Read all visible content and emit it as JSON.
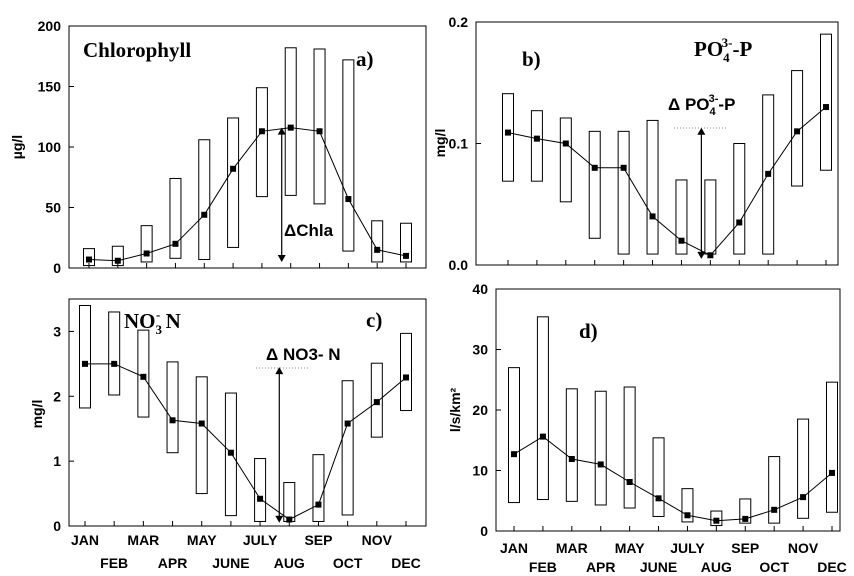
{
  "chart_data": [
    {
      "type": "line",
      "panel_label": "a)",
      "title": "Chlorophyll",
      "ylabel": "µg/l",
      "ylim": [
        0,
        200
      ],
      "yticks": [
        "0",
        "50",
        "100",
        "150",
        "200"
      ],
      "months": [
        "JAN",
        "FEB",
        "MAR",
        "APR",
        "MAY",
        "JUNE",
        "JULY",
        "AUG",
        "SEP",
        "OCT",
        "NOV",
        "DEC"
      ],
      "x_row1": [
        "JAN",
        "MAR",
        "MAY",
        "JULY",
        "SEP",
        "NOV"
      ],
      "x_row2": [
        "FEB",
        "APR",
        "JUNE",
        "AUG",
        "OCT",
        "DEC"
      ],
      "series": [
        {
          "values": [
            7,
            6,
            12,
            20,
            44,
            82,
            113,
            116,
            113,
            57,
            15,
            10
          ]
        }
      ],
      "range_bars": [
        [
          2,
          16
        ],
        [
          2,
          18
        ],
        [
          5,
          35
        ],
        [
          8,
          74
        ],
        [
          7,
          106
        ],
        [
          17,
          124
        ],
        [
          59,
          149
        ],
        [
          60,
          182
        ],
        [
          53,
          181
        ],
        [
          14,
          172
        ],
        [
          5,
          39
        ],
        [
          5,
          37
        ]
      ],
      "annotation": {
        "text": "ΔChla",
        "from": 5,
        "to": 116
      }
    },
    {
      "type": "line",
      "panel_label": "b)",
      "title_main": "PO",
      "title_sub": "4",
      "title_sup": "3-",
      "title_tail": "-P",
      "ylabel": "mg/l",
      "ylim": [
        0,
        0.2
      ],
      "yticks": [
        "0.0",
        "0.1",
        "0.2"
      ],
      "series": [
        {
          "values": [
            0.109,
            0.104,
            0.1,
            0.08,
            0.08,
            0.04,
            0.02,
            0.008,
            0.035,
            0.075,
            0.11,
            0.13
          ]
        }
      ],
      "range_bars": [
        [
          0.069,
          0.141
        ],
        [
          0.069,
          0.127
        ],
        [
          0.052,
          0.121
        ],
        [
          0.022,
          0.11
        ],
        [
          0.009,
          0.11
        ],
        [
          0.009,
          0.119
        ],
        [
          0.009,
          0.07
        ],
        [
          0.009,
          0.07
        ],
        [
          0.009,
          0.1
        ],
        [
          0.009,
          0.14
        ],
        [
          0.065,
          0.16
        ],
        [
          0.078,
          0.19
        ]
      ],
      "annotation": {
        "prefix": "Δ PO",
        "sub": "4",
        "sup": "3-",
        "tail": "-P",
        "from": 0.005,
        "to": 0.113
      }
    },
    {
      "type": "line",
      "panel_label": "c)",
      "title_main": "NO",
      "title_sub": "3",
      "title_sup": "-",
      "title_tail": " N",
      "ylabel": "mg/l",
      "ylim": [
        0,
        3.5
      ],
      "yticks": [
        "0",
        "1",
        "2",
        "3"
      ],
      "series": [
        {
          "values": [
            2.5,
            2.5,
            2.3,
            1.63,
            1.58,
            1.13,
            0.42,
            0.1,
            0.33,
            1.58,
            1.91,
            2.29
          ]
        }
      ],
      "range_bars": [
        [
          1.82,
          3.4
        ],
        [
          2.02,
          3.3
        ],
        [
          1.68,
          3.02
        ],
        [
          1.13,
          2.53
        ],
        [
          0.5,
          2.3
        ],
        [
          0.16,
          2.05
        ],
        [
          0.07,
          1.04
        ],
        [
          0.07,
          0.67
        ],
        [
          0.07,
          1.1
        ],
        [
          0.17,
          2.24
        ],
        [
          1.37,
          2.51
        ],
        [
          1.78,
          2.97
        ]
      ],
      "annotation": {
        "text": "Δ NO3- N",
        "from": 0.05,
        "to": 2.45
      }
    },
    {
      "type": "line",
      "panel_label": "d)",
      "ylabel": "l/s/km²",
      "ylim": [
        0,
        40
      ],
      "yticks": [
        "0",
        "10",
        "20",
        "30",
        "40"
      ],
      "series": [
        {
          "values": [
            12.7,
            15.6,
            11.9,
            11.0,
            8.1,
            5.4,
            2.6,
            1.7,
            2.0,
            3.5,
            5.6,
            9.6
          ]
        }
      ],
      "range_bars": [
        [
          4.7,
          27.0
        ],
        [
          5.2,
          35.4
        ],
        [
          4.9,
          23.5
        ],
        [
          4.3,
          23.1
        ],
        [
          3.8,
          23.8
        ],
        [
          2.4,
          15.4
        ],
        [
          1.5,
          7.0
        ],
        [
          0.9,
          3.3
        ],
        [
          1.3,
          5.3
        ],
        [
          1.3,
          12.3
        ],
        [
          2.1,
          18.5
        ],
        [
          3.1,
          24.6
        ]
      ]
    }
  ]
}
